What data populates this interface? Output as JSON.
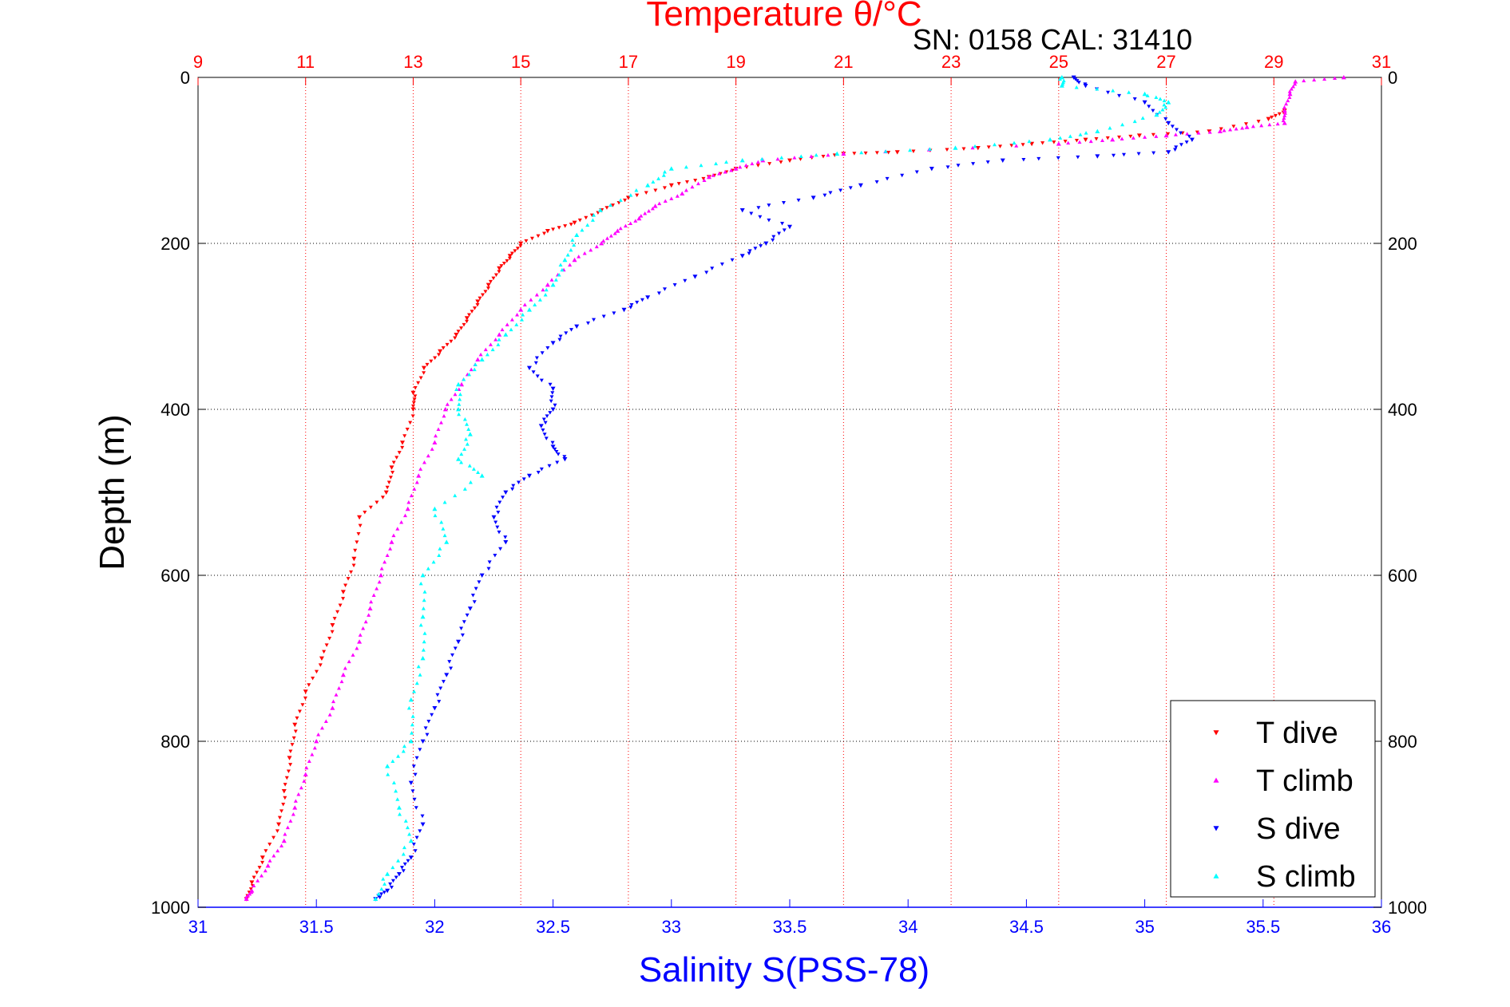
{
  "chart_data": {
    "type": "scatter",
    "title": "Temperature θ/°C",
    "subtitle": "SN: 0158  CAL: 31410",
    "xlabel": "Salinity S(PSS-78)",
    "ylabel": "Depth (m)",
    "temperature_axis": {
      "range": [
        9,
        31
      ],
      "ticks": [
        "9",
        "11",
        "13",
        "15",
        "17",
        "19",
        "21",
        "23",
        "25",
        "27",
        "29",
        "31"
      ],
      "color": "#ff0000"
    },
    "salinity_axis": {
      "range": [
        31,
        36
      ],
      "ticks": [
        "31",
        "31.5",
        "32",
        "32.5",
        "33",
        "33.5",
        "34",
        "34.5",
        "35",
        "35.5",
        "36"
      ],
      "color": "#0000ff"
    },
    "depth_axis": {
      "range": [
        0,
        1000
      ],
      "reversed": true,
      "ticks": [
        "0",
        "200",
        "400",
        "600",
        "800",
        "1000"
      ]
    },
    "grid": true,
    "legend_placement": "bottom-right",
    "series": [
      {
        "name": "T dive",
        "axis": "temperature",
        "color": "#ff0000",
        "marker": "triangle-down",
        "points": [
          [
            29.2,
            40
          ],
          [
            28.9,
            50
          ],
          [
            27.8,
            65
          ],
          [
            26.5,
            70
          ],
          [
            25.5,
            75
          ],
          [
            24.5,
            80
          ],
          [
            23.5,
            85
          ],
          [
            22.0,
            90
          ],
          [
            21.0,
            92
          ],
          [
            20.0,
            100
          ],
          [
            19.0,
            110
          ],
          [
            18.5,
            120
          ],
          [
            17.8,
            130
          ],
          [
            17.0,
            145
          ],
          [
            16.5,
            160
          ],
          [
            16.0,
            175
          ],
          [
            15.5,
            185
          ],
          [
            15.0,
            200
          ],
          [
            14.8,
            215
          ],
          [
            14.6,
            230
          ],
          [
            14.4,
            250
          ],
          [
            14.2,
            270
          ],
          [
            14.0,
            290
          ],
          [
            13.8,
            310
          ],
          [
            13.5,
            330
          ],
          [
            13.2,
            350
          ],
          [
            13.0,
            380
          ],
          [
            13.0,
            400
          ],
          [
            12.8,
            440
          ],
          [
            12.6,
            470
          ],
          [
            12.5,
            500
          ],
          [
            12.0,
            530
          ],
          [
            11.9,
            580
          ],
          [
            11.7,
            620
          ],
          [
            11.5,
            660
          ],
          [
            11.3,
            700
          ],
          [
            11.0,
            740
          ],
          [
            10.8,
            780
          ],
          [
            10.7,
            820
          ],
          [
            10.6,
            860
          ],
          [
            10.5,
            900
          ],
          [
            10.2,
            940
          ],
          [
            10.0,
            970
          ],
          [
            9.9,
            990
          ]
        ]
      },
      {
        "name": "T climb",
        "axis": "temperature",
        "color": "#ff00ff",
        "marker": "triangle-up",
        "points": [
          [
            30.3,
            0
          ],
          [
            29.4,
            5
          ],
          [
            29.3,
            20
          ],
          [
            29.2,
            40
          ],
          [
            29.2,
            55
          ],
          [
            28.5,
            60
          ],
          [
            28.0,
            65
          ],
          [
            27.0,
            70
          ],
          [
            26.0,
            75
          ],
          [
            25.0,
            80
          ],
          [
            21.0,
            92
          ],
          [
            19.5,
            100
          ],
          [
            19.0,
            110
          ],
          [
            18.5,
            120
          ],
          [
            18.0,
            140
          ],
          [
            17.5,
            155
          ],
          [
            17.2,
            170
          ],
          [
            16.8,
            185
          ],
          [
            16.5,
            200
          ],
          [
            16.0,
            220
          ],
          [
            15.5,
            250
          ],
          [
            15.0,
            280
          ],
          [
            14.6,
            310
          ],
          [
            14.2,
            340
          ],
          [
            13.9,
            370
          ],
          [
            13.6,
            400
          ],
          [
            13.4,
            440
          ],
          [
            13.1,
            480
          ],
          [
            12.9,
            520
          ],
          [
            12.6,
            560
          ],
          [
            12.4,
            600
          ],
          [
            12.2,
            640
          ],
          [
            12.0,
            680
          ],
          [
            11.7,
            720
          ],
          [
            11.5,
            760
          ],
          [
            11.2,
            800
          ],
          [
            11.0,
            840
          ],
          [
            10.8,
            880
          ],
          [
            10.6,
            920
          ],
          [
            10.3,
            950
          ],
          [
            10.0,
            980
          ],
          [
            9.9,
            990
          ]
        ]
      },
      {
        "name": "S dive",
        "axis": "salinity",
        "color": "#0000ff",
        "marker": "triangle-down",
        "points": [
          [
            34.7,
            0
          ],
          [
            34.75,
            10
          ],
          [
            35.0,
            30
          ],
          [
            35.1,
            55
          ],
          [
            35.2,
            75
          ],
          [
            35.1,
            90
          ],
          [
            34.8,
            95
          ],
          [
            34.4,
            100
          ],
          [
            34.1,
            110
          ],
          [
            33.8,
            130
          ],
          [
            33.6,
            145
          ],
          [
            33.3,
            160
          ],
          [
            33.5,
            180
          ],
          [
            33.4,
            200
          ],
          [
            33.3,
            215
          ],
          [
            33.1,
            240
          ],
          [
            32.9,
            265
          ],
          [
            32.8,
            280
          ],
          [
            32.6,
            300
          ],
          [
            32.5,
            320
          ],
          [
            32.4,
            350
          ],
          [
            32.5,
            375
          ],
          [
            32.5,
            400
          ],
          [
            32.45,
            420
          ],
          [
            32.5,
            445
          ],
          [
            32.55,
            460
          ],
          [
            32.4,
            480
          ],
          [
            32.3,
            500
          ],
          [
            32.25,
            530
          ],
          [
            32.3,
            560
          ],
          [
            32.2,
            600
          ],
          [
            32.15,
            640
          ],
          [
            32.1,
            680
          ],
          [
            32.05,
            720
          ],
          [
            32.0,
            760
          ],
          [
            31.95,
            800
          ],
          [
            31.9,
            850
          ],
          [
            31.95,
            900
          ],
          [
            31.9,
            940
          ],
          [
            31.85,
            960
          ],
          [
            31.8,
            980
          ],
          [
            31.75,
            990
          ]
        ]
      },
      {
        "name": "S climb",
        "axis": "salinity",
        "color": "#00ffff",
        "marker": "triangle-up",
        "points": [
          [
            34.65,
            0
          ],
          [
            34.65,
            10
          ],
          [
            35.0,
            20
          ],
          [
            35.1,
            30
          ],
          [
            35.05,
            45
          ],
          [
            34.8,
            65
          ],
          [
            34.6,
            75
          ],
          [
            34.2,
            85
          ],
          [
            33.7,
            92
          ],
          [
            33.3,
            100
          ],
          [
            33.0,
            110
          ],
          [
            32.9,
            130
          ],
          [
            32.7,
            160
          ],
          [
            32.6,
            190
          ],
          [
            32.55,
            220
          ],
          [
            32.5,
            250
          ],
          [
            32.4,
            280
          ],
          [
            32.3,
            310
          ],
          [
            32.2,
            340
          ],
          [
            32.1,
            370
          ],
          [
            32.1,
            400
          ],
          [
            32.15,
            430
          ],
          [
            32.1,
            460
          ],
          [
            32.2,
            480
          ],
          [
            32.0,
            520
          ],
          [
            32.05,
            560
          ],
          [
            31.95,
            600
          ],
          [
            31.95,
            650
          ],
          [
            31.95,
            700
          ],
          [
            31.9,
            750
          ],
          [
            31.9,
            800
          ],
          [
            31.8,
            830
          ],
          [
            31.85,
            880
          ],
          [
            31.9,
            920
          ],
          [
            31.8,
            960
          ],
          [
            31.75,
            990
          ]
        ]
      }
    ]
  }
}
